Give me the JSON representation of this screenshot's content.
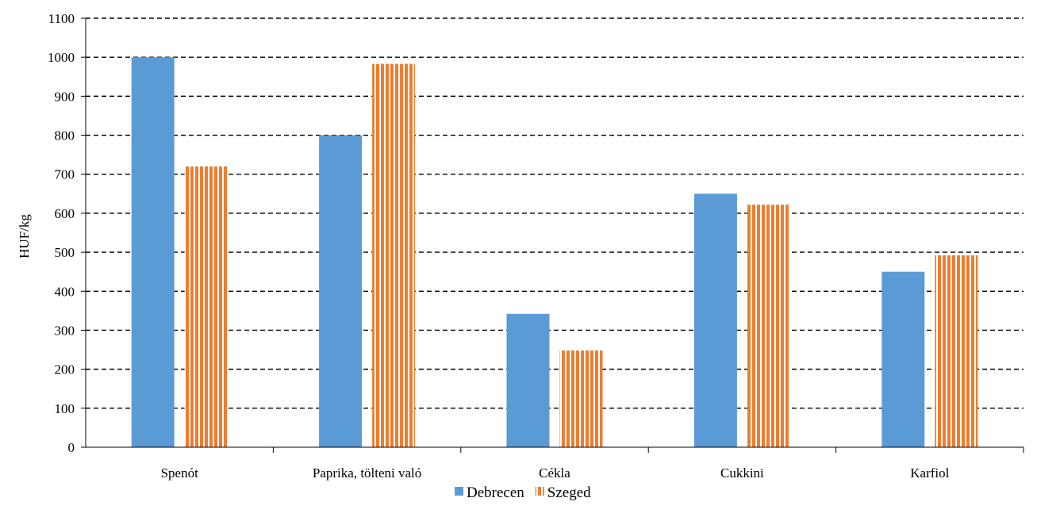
{
  "chart_data": {
    "type": "bar",
    "ylabel": "HUF/kg",
    "ylim": [
      0,
      1100
    ],
    "ytick_step": 100,
    "yticks": [
      "0",
      "100",
      "200",
      "300",
      "400",
      "500",
      "600",
      "700",
      "800",
      "900",
      "1000",
      "1100"
    ],
    "grid": "dashed-horizontal",
    "legend_position": "bottom-center",
    "categories": [
      "Spenót",
      "Paprika, tölteni való",
      "Cékla",
      "Cukkini",
      "Karfiol"
    ],
    "series": [
      {
        "name": "Debrecen",
        "values": [
          1000,
          800,
          342,
          650,
          450
        ],
        "color": "#5B9BD5",
        "pattern": "solid"
      },
      {
        "name": "Szeged",
        "values": [
          720,
          983,
          248,
          622,
          492
        ],
        "color": "#ED7D31",
        "pattern": "vertical-stripes"
      }
    ]
  }
}
